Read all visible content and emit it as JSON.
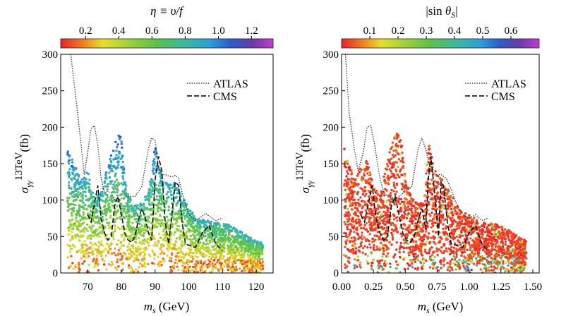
{
  "chart_data": [
    {
      "type": "scatter",
      "xlabel": "m_s (GeV)",
      "ylabel": "σ_γγ^13TeV (fb)",
      "xlim": [
        62,
        125
      ],
      "ylim": [
        0,
        300
      ],
      "xticks": [
        "70",
        "80",
        "90",
        "100",
        "110",
        "120"
      ],
      "xtick_values": [
        70,
        80,
        90,
        100,
        110,
        120
      ],
      "yticks": [
        "0",
        "50",
        "100",
        "150",
        "200",
        "250",
        "300"
      ],
      "ytick_values": [
        0,
        50,
        100,
        150,
        200,
        250,
        300
      ],
      "colorbar": {
        "title": "η ≡ υ/f",
        "range": [
          0.05,
          1.33
        ],
        "ticks": [
          "0.2",
          "0.4",
          "0.6",
          "0.8",
          "1.0",
          "1.2"
        ],
        "tick_values": [
          0.2,
          0.4,
          0.6,
          0.8,
          1.0,
          1.2
        ],
        "colormap": [
          "#e8202a",
          "#f07a1e",
          "#e8df2a",
          "#a0d03c",
          "#5cc247",
          "#3cb8a0",
          "#2e9fd8",
          "#2c5cc8",
          "#6a3aa6",
          "#c03cd0"
        ]
      },
      "scan_envelope": {
        "x": [
          64,
          66,
          68,
          70,
          71,
          72,
          74,
          76,
          78,
          79,
          80,
          81,
          82,
          84,
          86,
          88,
          90,
          91,
          92,
          94,
          96,
          98,
          100,
          102,
          104,
          106,
          108,
          110,
          112,
          114,
          116,
          118,
          120,
          122
        ],
        "y": [
          175,
          150,
          128,
          145,
          118,
          105,
          110,
          148,
          178,
          192,
          185,
          130,
          108,
          95,
          98,
          110,
          180,
          150,
          135,
          120,
          125,
          105,
          90,
          78,
          74,
          72,
          70,
          68,
          66,
          60,
          55,
          50,
          45,
          42
        ]
      },
      "series": [
        {
          "name": "ATLAS",
          "style": "dotted",
          "x": [
            65,
            67,
            69,
            70,
            71,
            72,
            73,
            74,
            75,
            76,
            77,
            78,
            79,
            80,
            82,
            84,
            86,
            88,
            89,
            90,
            91,
            92,
            93,
            94,
            95,
            96,
            97,
            98,
            100,
            102,
            104,
            105,
            106,
            108,
            110
          ],
          "y": [
            300,
            220,
            135,
            165,
            198,
            202,
            175,
            130,
            110,
            112,
            110,
            100,
            98,
            102,
            105,
            105,
            118,
            170,
            185,
            182,
            145,
            135,
            135,
            133,
            132,
            134,
            130,
            110,
            80,
            72,
            78,
            82,
            78,
            72,
            75
          ]
        },
        {
          "name": "CMS",
          "style": "dashed",
          "x": [
            70,
            71,
            72,
            73,
            74,
            75,
            76,
            77,
            78,
            79,
            80,
            81,
            82,
            83,
            84,
            85,
            86,
            87,
            88,
            89,
            90,
            91,
            92,
            93,
            94,
            95,
            96,
            97,
            98,
            99,
            100,
            102,
            104,
            106,
            108,
            110
          ],
          "y": [
            80,
            70,
            95,
            120,
            75,
            55,
            45,
            50,
            92,
            105,
            80,
            55,
            45,
            42,
            50,
            72,
            88,
            78,
            55,
            45,
            128,
            160,
            140,
            70,
            40,
            80,
            125,
            120,
            70,
            40,
            38,
            35,
            55,
            65,
            40,
            30
          ]
        }
      ]
    },
    {
      "type": "scatter",
      "xlabel": "m_s (GeV)",
      "ylabel": "σ_γγ^13TeV (fb)",
      "xlim": [
        0,
        1.55
      ],
      "ylim": [
        0,
        300
      ],
      "xticks": [
        "0.00",
        "0.25",
        "0.50",
        "0.75",
        "1.00",
        "1.25",
        "1.50"
      ],
      "xtick_values": [
        0,
        0.25,
        0.5,
        0.75,
        1.0,
        1.25,
        1.5
      ],
      "yticks": [
        "0",
        "50",
        "100",
        "150",
        "200",
        "250",
        "300"
      ],
      "ytick_values": [
        0,
        50,
        100,
        150,
        200,
        250,
        300
      ],
      "colorbar": {
        "title": "|sin θ_S|",
        "range": [
          0.0,
          0.7
        ],
        "ticks": [
          "0.1",
          "0.2",
          "0.3",
          "0.4",
          "0.5",
          "0.6"
        ],
        "tick_values": [
          0.1,
          0.2,
          0.3,
          0.4,
          0.5,
          0.6
        ],
        "colormap": [
          "#e8202a",
          "#f07a1e",
          "#e8df2a",
          "#a0d03c",
          "#5cc247",
          "#3cb8a0",
          "#2e9fd8",
          "#2c5cc8",
          "#6a3aa6",
          "#c03cd0"
        ]
      },
      "scan_envelope": {
        "x": [
          0.02,
          0.06,
          0.1,
          0.15,
          0.2,
          0.25,
          0.3,
          0.35,
          0.4,
          0.43,
          0.47,
          0.5,
          0.55,
          0.6,
          0.65,
          0.68,
          0.72,
          0.76,
          0.8,
          0.85,
          0.9,
          0.95,
          1.0,
          1.05,
          1.1,
          1.15,
          1.2,
          1.25,
          1.3,
          1.35,
          1.4,
          1.45
        ],
        "y": [
          175,
          150,
          130,
          145,
          155,
          120,
          105,
          150,
          180,
          195,
          180,
          130,
          105,
          95,
          100,
          180,
          150,
          135,
          125,
          110,
          95,
          85,
          80,
          75,
          70,
          68,
          68,
          65,
          60,
          55,
          48,
          45
        ]
      },
      "series": [
        {
          "name": "ATLAS",
          "style": "dotted",
          "x": [
            0.03,
            0.06,
            0.1,
            0.13,
            0.17,
            0.2,
            0.23,
            0.26,
            0.3,
            0.33,
            0.36,
            0.4,
            0.45,
            0.5,
            0.55,
            0.6,
            0.63,
            0.66,
            0.7,
            0.74,
            0.78,
            0.82,
            0.86,
            0.9,
            0.95,
            1.0,
            1.05,
            1.1,
            1.15
          ],
          "y": [
            300,
            220,
            170,
            140,
            165,
            200,
            202,
            175,
            130,
            112,
            105,
            102,
            105,
            112,
            118,
            170,
            185,
            170,
            140,
            135,
            135,
            130,
            115,
            95,
            80,
            75,
            80,
            72,
            75
          ]
        },
        {
          "name": "CMS",
          "style": "dashed",
          "x": [
            0.15,
            0.18,
            0.21,
            0.24,
            0.27,
            0.3,
            0.33,
            0.36,
            0.39,
            0.42,
            0.45,
            0.48,
            0.51,
            0.54,
            0.57,
            0.6,
            0.63,
            0.66,
            0.68,
            0.7,
            0.73,
            0.76,
            0.78,
            0.8,
            0.83,
            0.86,
            0.9,
            0.95,
            1.0,
            1.05,
            1.1,
            1.15
          ],
          "y": [
            80,
            70,
            95,
            120,
            75,
            55,
            45,
            50,
            92,
            105,
            80,
            55,
            45,
            42,
            50,
            72,
            88,
            60,
            128,
            160,
            110,
            50,
            125,
            120,
            70,
            40,
            38,
            35,
            55,
            65,
            40,
            30
          ]
        }
      ]
    }
  ]
}
